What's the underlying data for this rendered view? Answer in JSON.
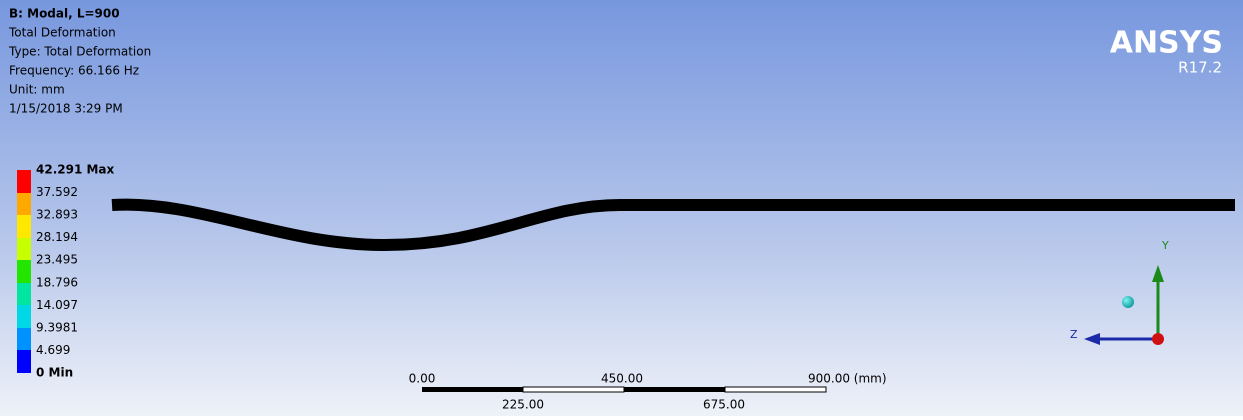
{
  "header": {
    "lines": [
      "B: Modal, L=900",
      "Total Deformation",
      "Type: Total Deformation",
      "Frequency: 66.166 Hz",
      "Unit: mm",
      "1/15/2018 3:29 PM"
    ]
  },
  "legend": {
    "labels": [
      "42.291 Max",
      "37.592",
      "32.893",
      "28.194",
      "23.495",
      "18.796",
      "14.097",
      "9.3981",
      "4.699",
      "0 Min"
    ]
  },
  "logo": {
    "name": "ANSYS",
    "version": "R17.2"
  },
  "scale_bar": {
    "top_labels": [
      "0.00",
      "450.00",
      "900.00 (mm)"
    ],
    "bottom_labels": [
      "225.00",
      "675.00"
    ]
  },
  "triad": {
    "y_label": "Y",
    "z_label": "Z"
  }
}
